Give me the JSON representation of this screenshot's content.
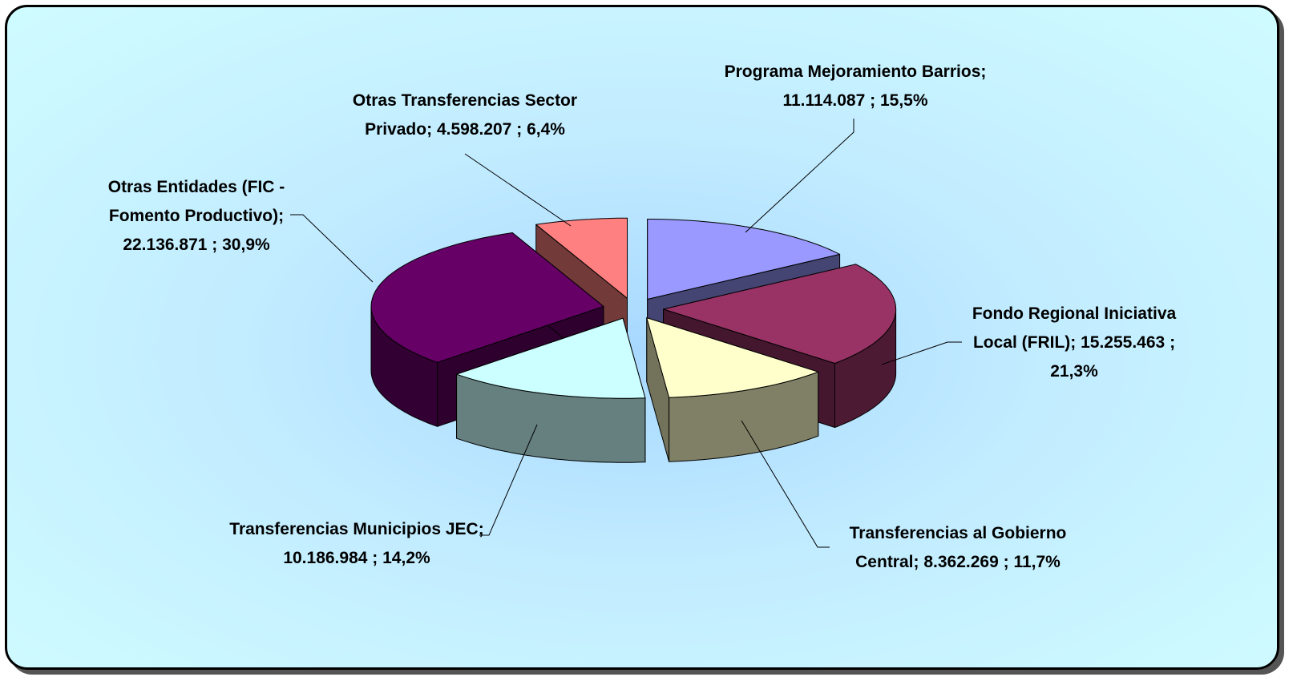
{
  "chart_data": {
    "type": "pie3d",
    "categories": [
      "Programa Mejoramiento Barrios",
      "Fondo Regional Iniciativa Local (FRIL)",
      "Transferencias al Gobierno Central",
      "Transferencias Municipios JEC",
      "Otras Entidades (FIC - Fomento Productivo)",
      "Otras Transferencias Sector Privado"
    ],
    "values": [
      11114087,
      15255463,
      8362269,
      10186984,
      22136871,
      4598207
    ],
    "value_labels": [
      "11.114.087",
      "15.255.463",
      "8.362.269",
      "10.186.984",
      "22.136.871",
      "4.598.207"
    ],
    "percentages": [
      15.5,
      21.3,
      11.7,
      14.2,
      30.9,
      6.4
    ],
    "percentage_labels": [
      "15,5%",
      "21,3%",
      "11,7%",
      "14,2%",
      "30,9%",
      "6,4%"
    ],
    "label_separator": ";",
    "colors": [
      "#9999ff",
      "#993366",
      "#ffffcc",
      "#ccffff",
      "#660066",
      "#ff8080"
    ]
  }
}
